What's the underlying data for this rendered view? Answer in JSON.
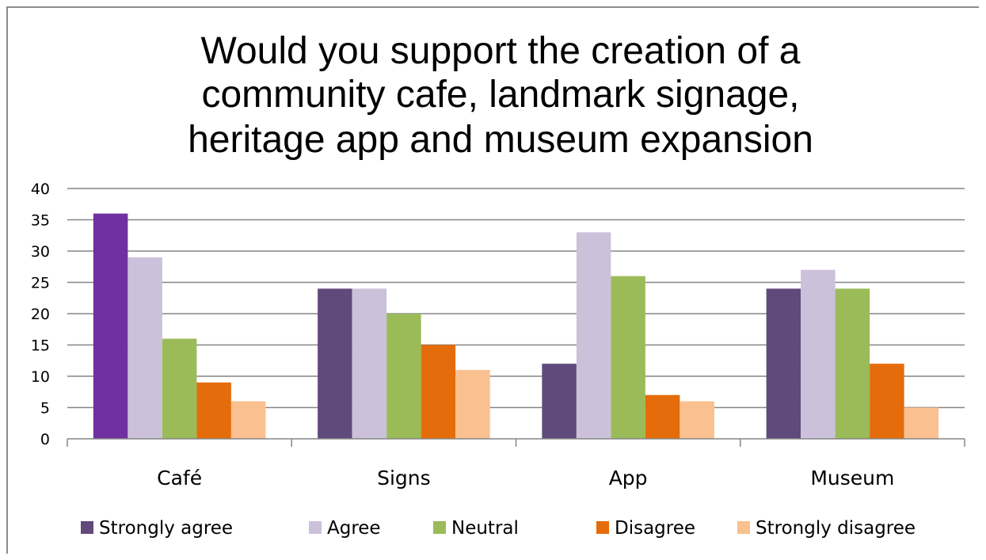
{
  "chart_data": {
    "type": "bar",
    "title_lines": [
      "Would you support the creation of a",
      "community cafe, landmark signage,",
      "heritage app and museum expansion"
    ],
    "categories": [
      "Café",
      "Signs",
      "App",
      "Museum"
    ],
    "series": [
      {
        "name": "Strongly agree",
        "color": "#604a7b",
        "values": [
          36,
          24,
          12,
          24
        ]
      },
      {
        "name": "Agree",
        "color": "#ccc1da",
        "values": [
          29,
          24,
          33,
          27
        ]
      },
      {
        "name": "Neutral",
        "color": "#9bbb59",
        "values": [
          16,
          20,
          26,
          24
        ]
      },
      {
        "name": "Disagree",
        "color": "#e46c0a",
        "values": [
          9,
          15,
          7,
          12
        ]
      },
      {
        "name": "Strongly disagree",
        "color": "#fac090",
        "values": [
          6,
          11,
          6,
          5
        ]
      }
    ],
    "highlight_color": "#7030a0",
    "ylim": [
      0,
      40
    ],
    "yticks": [
      "0",
      "5",
      "10",
      "15",
      "20",
      "25",
      "30",
      "35",
      "40"
    ],
    "grid": true,
    "legend_position": "bottom"
  }
}
